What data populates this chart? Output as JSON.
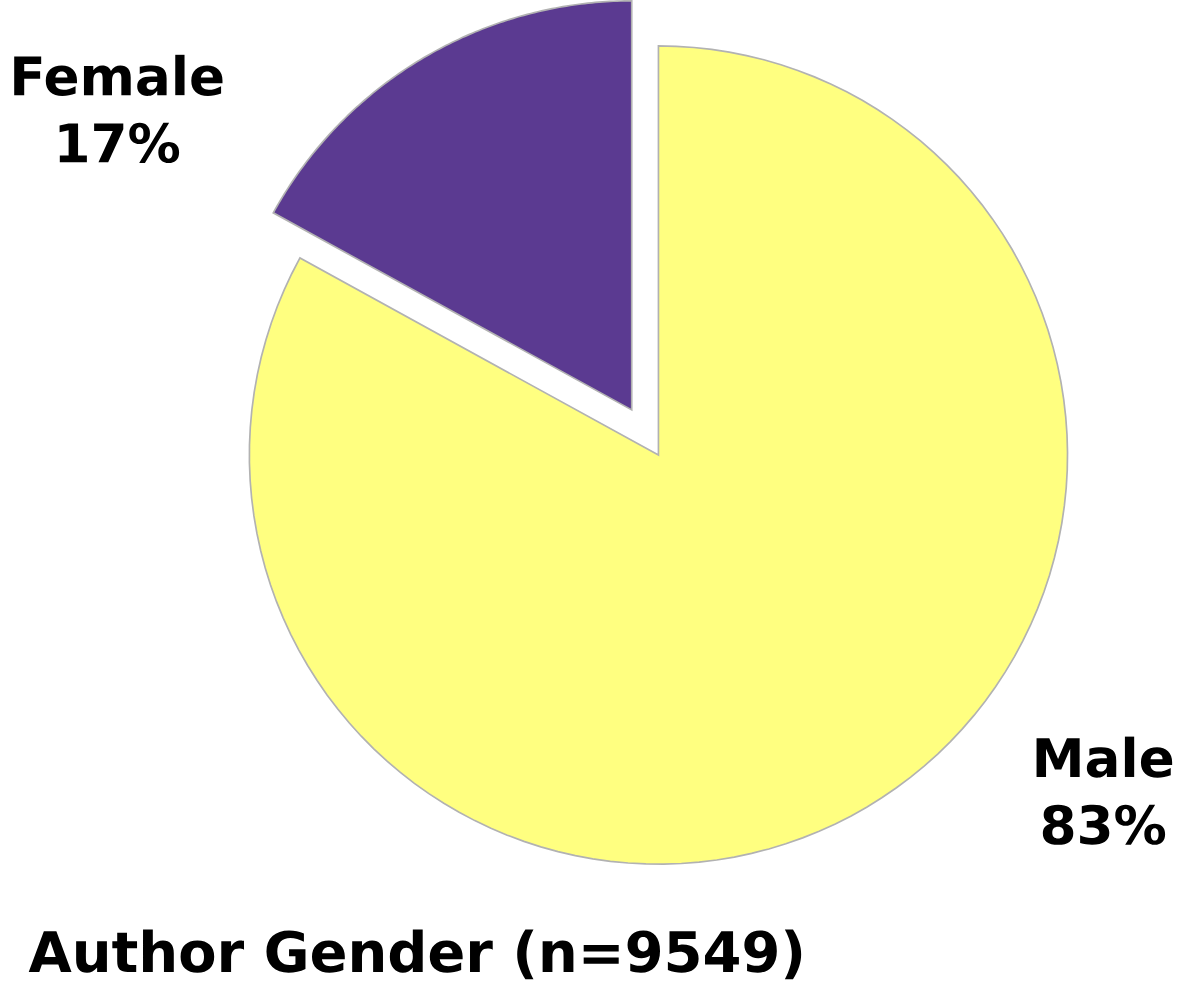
{
  "chart_data": {
    "type": "pie",
    "title": "Author Gender (n=9549)",
    "categories": [
      "Female",
      "Male"
    ],
    "values": [
      17,
      83
    ],
    "colors": [
      "#5b3a91",
      "#ffff80"
    ],
    "value_labels": [
      "17%",
      "83%"
    ]
  }
}
